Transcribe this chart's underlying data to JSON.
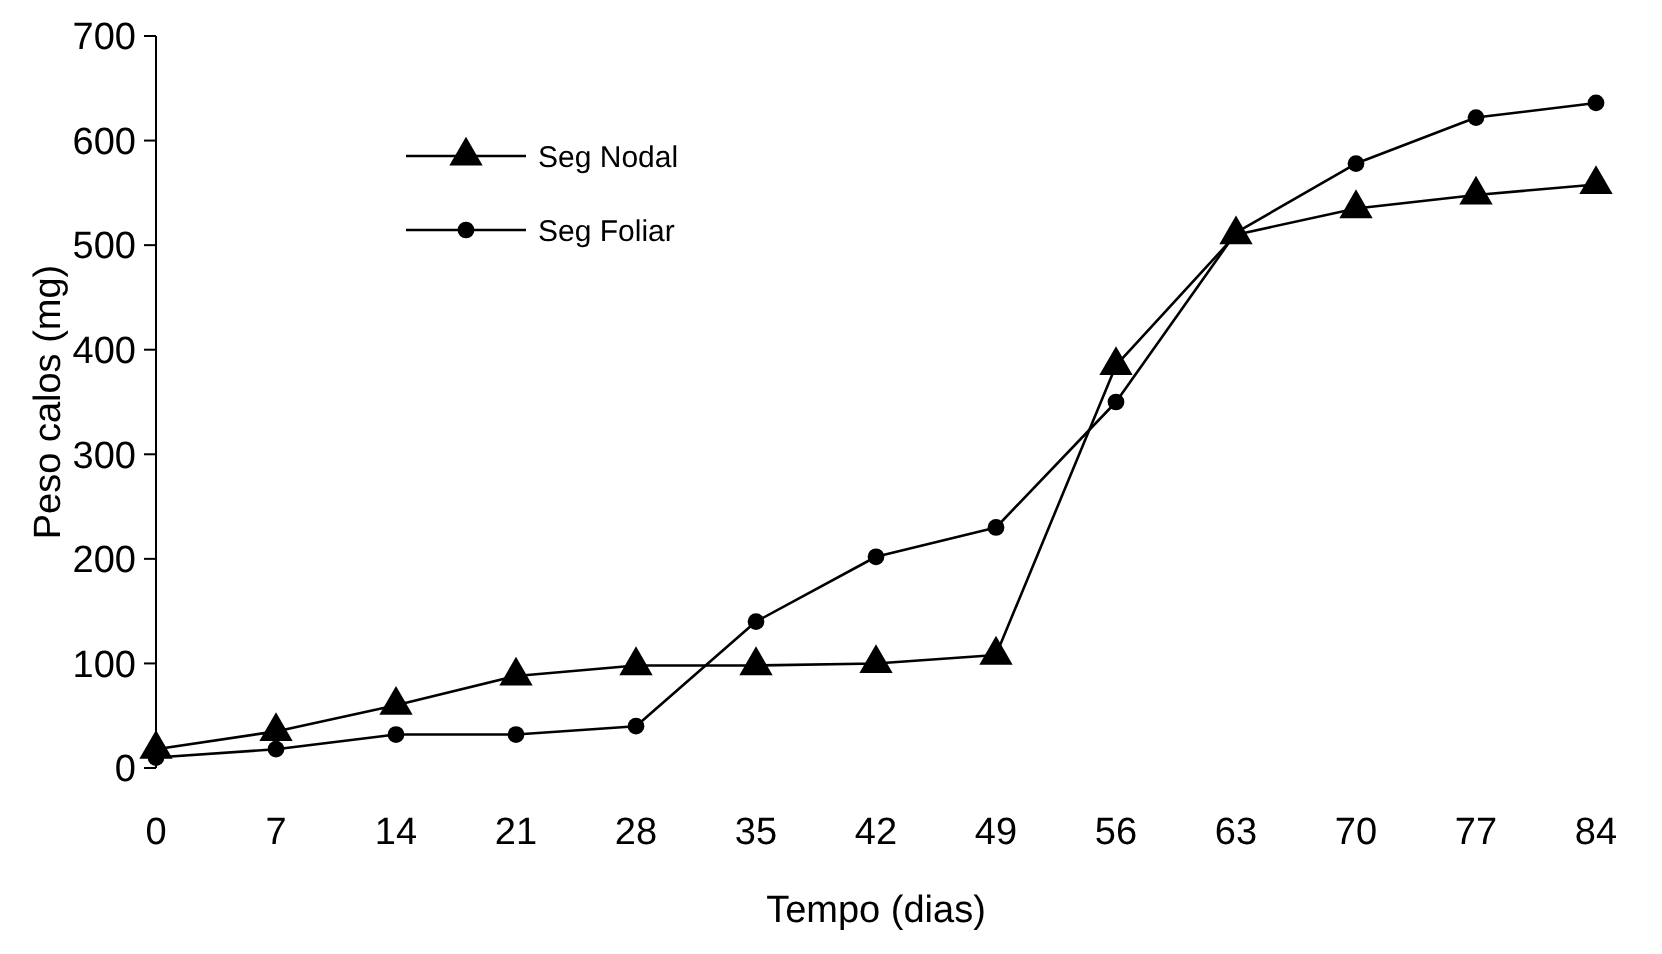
{
  "chart_data": {
    "type": "line",
    "xlabel": "Tempo (dias)",
    "ylabel": "Peso calos (mg)",
    "x": [
      0,
      7,
      14,
      21,
      28,
      35,
      42,
      49,
      56,
      63,
      70,
      77,
      84
    ],
    "xlim": [
      0,
      84
    ],
    "xticks": [
      0,
      7,
      14,
      21,
      28,
      35,
      42,
      49,
      56,
      63,
      70,
      77,
      84
    ],
    "ylim": [
      0,
      700
    ],
    "yticks": [
      0,
      100,
      200,
      300,
      400,
      500,
      600,
      700
    ],
    "grid": false,
    "legend": "top left",
    "line_style": "solid",
    "series": [
      {
        "name": "Seg Nodal",
        "color": "#000000",
        "marker": "triangle",
        "values": [
          18,
          35,
          60,
          88,
          98,
          98,
          100,
          108,
          385,
          510,
          535,
          548,
          558
        ]
      },
      {
        "name": "Seg Foliar",
        "color": "#000000",
        "marker": "circle",
        "values": [
          10,
          18,
          32,
          32,
          40,
          140,
          202,
          230,
          350,
          512,
          578,
          622,
          636
        ]
      }
    ]
  }
}
